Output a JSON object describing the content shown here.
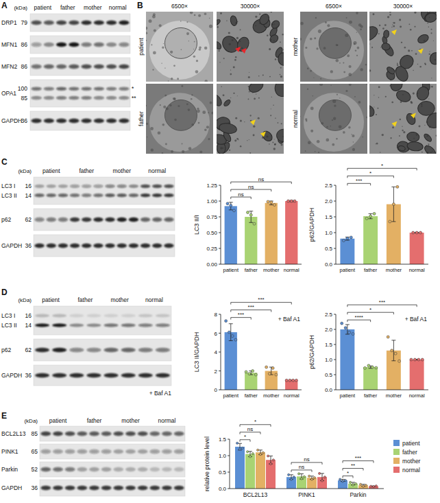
{
  "panel_labels": [
    "A",
    "B",
    "C",
    "D",
    "E"
  ],
  "blots": [
    {
      "unit": "(kDa)",
      "lanes": [
        "patient",
        "father",
        "mother",
        "normal"
      ],
      "lanes_per_group": 2,
      "rows": [
        {
          "band_labels": [
            {
              "name": "DRP1",
              "kda": 79
            }
          ],
          "bands": [
            [
              0.7,
              0.65,
              0.75,
              0.75,
              0.85,
              0.85,
              0.85,
              0.9
            ]
          ]
        },
        {
          "band_labels": [
            {
              "name": "MFN1",
              "kda": 86
            }
          ],
          "bands": [
            [
              0.35,
              0.4,
              0.95,
              0.95,
              0.5,
              0.55,
              0.4,
              0.45
            ]
          ]
        },
        {
          "band_labels": [
            {
              "name": "MFN2",
              "kda": 86
            }
          ],
          "bands": [
            [
              0.55,
              0.6,
              0.6,
              0.65,
              0.7,
              0.7,
              0.7,
              0.75
            ]
          ]
        },
        {
          "name": "OPA1",
          "band_labels": [
            {
              "kda": 100,
              "mark": "*"
            },
            {
              "kda": 85,
              "mark": "**"
            }
          ],
          "bands": [
            [
              0.55,
              0.5,
              0.6,
              0.55,
              0.55,
              0.55,
              0.5,
              0.5
            ],
            [
              0.45,
              0.45,
              0.5,
              0.5,
              0.5,
              0.45,
              0.45,
              0.45
            ]
          ]
        },
        {
          "band_labels": [
            {
              "name": "GAPDH",
              "kda": 36
            }
          ],
          "bands": [
            [
              0.85,
              0.85,
              0.85,
              0.85,
              0.85,
              0.85,
              0.85,
              0.85
            ]
          ]
        }
      ]
    },
    {
      "unit": "(kDa)",
      "lanes": [
        "patient",
        "father",
        "mother",
        "normal"
      ],
      "lanes_per_group": 3,
      "rows": [
        {
          "band_labels": [
            {
              "name": "LC3 I",
              "kda": 16
            },
            {
              "name": "LC3 II",
              "kda": 14
            }
          ],
          "bands": [
            [
              0.3,
              0.3,
              0.3,
              0.35,
              0.35,
              0.35,
              0.45,
              0.45,
              0.4,
              0.7,
              0.7,
              0.7
            ],
            [
              0.6,
              0.6,
              0.6,
              0.55,
              0.5,
              0.55,
              0.65,
              0.65,
              0.6,
              0.8,
              0.8,
              0.8
            ]
          ]
        },
        {
          "band_labels": [
            {
              "name": "p62",
              "kda": 62
            }
          ],
          "bands": [
            [
              0.45,
              0.5,
              0.5,
              0.8,
              0.8,
              0.85,
              0.85,
              0.9,
              0.9,
              0.6,
              0.6,
              0.6
            ]
          ]
        },
        {
          "band_labels": [
            {
              "name": "GAPDH",
              "kda": 36
            }
          ],
          "bands": [
            [
              0.85,
              0.85,
              0.85,
              0.85,
              0.85,
              0.85,
              0.85,
              0.85,
              0.85,
              0.85,
              0.85,
              0.85
            ]
          ]
        }
      ]
    },
    {
      "unit": "(kDa)",
      "lanes": [
        "patient",
        "father",
        "mother",
        "normal"
      ],
      "lanes_per_group": 2,
      "footer": "+ Baf A1",
      "rows": [
        {
          "band_labels": [
            {
              "name": "LC3 I",
              "kda": 16
            },
            {
              "name": "LC3 II",
              "kda": 14
            }
          ],
          "bands": [
            [
              0.2,
              0.2,
              0.1,
              0.1,
              0.1,
              0.1,
              0.15,
              0.15
            ],
            [
              0.95,
              0.95,
              0.4,
              0.4,
              0.55,
              0.55,
              0.5,
              0.5
            ]
          ]
        },
        {
          "band_labels": [
            {
              "name": "p62",
              "kda": 62
            }
          ],
          "bands": [
            [
              0.85,
              0.9,
              0.45,
              0.45,
              0.6,
              0.6,
              0.5,
              0.5
            ]
          ]
        },
        {
          "band_labels": [
            {
              "name": "GAPDH",
              "kda": 36
            }
          ],
          "bands": [
            [
              0.85,
              0.85,
              0.85,
              0.85,
              0.85,
              0.85,
              0.85,
              0.85
            ]
          ]
        }
      ]
    },
    {
      "unit": "(kDa)",
      "lanes": [
        "patient",
        "father",
        "mother",
        "normal"
      ],
      "lanes_per_group": 3,
      "rows": [
        {
          "band_labels": [
            {
              "name": "BCL2L13",
              "kda": 85
            }
          ],
          "bands": [
            [
              0.75,
              0.75,
              0.7,
              0.65,
              0.65,
              0.65,
              0.7,
              0.7,
              0.7,
              0.6,
              0.6,
              0.6
            ]
          ]
        },
        {
          "band_labels": [
            {
              "name": "PINK1",
              "kda": 65
            }
          ],
          "bands": [
            [
              0.35,
              0.35,
              0.35,
              0.35,
              0.35,
              0.35,
              0.3,
              0.3,
              0.3,
              0.35,
              0.35,
              0.35
            ]
          ]
        },
        {
          "band_labels": [
            {
              "name": "Parkin",
              "kda": 52
            }
          ],
          "bands": [
            [
              0.6,
              0.55,
              0.5,
              0.3,
              0.3,
              0.3,
              0.25,
              0.25,
              0.25,
              0.2,
              0.2,
              0.2
            ]
          ]
        },
        {
          "band_labels": [
            {
              "name": "GAPDH",
              "kda": 36
            }
          ],
          "bands": [
            [
              0.8,
              0.8,
              0.8,
              0.8,
              0.8,
              0.8,
              0.8,
              0.8,
              0.8,
              0.8,
              0.8,
              0.8
            ]
          ]
        }
      ]
    }
  ],
  "em": {
    "magnifications": [
      "6500×",
      "30000×"
    ],
    "samples": [
      {
        "label": "patient",
        "arrow_color": "#e8262b",
        "arrows": 2
      },
      {
        "label": "father",
        "arrow_color": "#f2d21b",
        "arrows": 2
      },
      {
        "label": "mother",
        "arrow_color": "#f2d21b",
        "arrows": 2
      },
      {
        "label": "normal",
        "arrow_color": "#f2d21b",
        "arrows": 2
      }
    ]
  },
  "chart_data": [
    {
      "type": "bar",
      "y_label": "LC3 II/I",
      "categories": [
        "patient",
        "father",
        "mother",
        "normal"
      ],
      "values": [
        0.92,
        0.75,
        0.97,
        1.0
      ],
      "errors": [
        0.06,
        0.09,
        0.03,
        0.01
      ],
      "points": [
        [
          0.96,
          0.93,
          0.85
        ],
        [
          0.82,
          0.78,
          0.64
        ],
        [
          0.99,
          0.98,
          0.94
        ],
        [
          1,
          1,
          1
        ]
      ],
      "colors": [
        "#5b8fd4",
        "#a9d373",
        "#e3b064",
        "#e46e6e"
      ],
      "ylim": [
        0,
        1.25
      ],
      "yticks": [
        {
          "value": 0,
          "label": "0.00"
        },
        0.25,
        {
          "value": 0.5,
          "label": "0.50"
        },
        0.75,
        {
          "value": 1,
          "label": "1.00"
        },
        1.25
      ],
      "significance": [
        {
          "from": 0,
          "to": 1,
          "label": "ns"
        },
        {
          "from": 0,
          "to": 2,
          "label": "ns"
        },
        {
          "from": 0,
          "to": 3,
          "label": "ns"
        }
      ]
    },
    {
      "type": "bar",
      "y_label": "p62/GAPDH",
      "categories": [
        "patient",
        "father",
        "mother",
        "normal"
      ],
      "values": [
        0.81,
        1.52,
        1.9,
        1.0
      ],
      "errors": [
        0.05,
        0.08,
        0.55,
        0.01
      ],
      "points": [
        [
          0.75,
          0.82,
          0.85
        ],
        [
          1.45,
          1.52,
          1.6
        ],
        [
          1.35,
          1.9,
          2.45
        ],
        [
          1,
          1,
          1
        ]
      ],
      "colors": [
        "#5b8fd4",
        "#a9d373",
        "#e3b064",
        "#e46e6e"
      ],
      "ylim": [
        0,
        2.5
      ],
      "yticks": [
        {
          "value": 0,
          "label": "0.0"
        },
        0.5,
        {
          "value": 1,
          "label": "1.0"
        },
        1.5,
        {
          "value": 2,
          "label": "2.0"
        },
        2.5
      ],
      "significance": [
        {
          "from": 0,
          "to": 1,
          "label": "***"
        },
        {
          "from": 0,
          "to": 2,
          "label": "*"
        },
        {
          "from": 0,
          "to": 3,
          "label": "*"
        }
      ]
    },
    {
      "type": "bar",
      "y_label": "LC3 II/GAPDH",
      "annotation": "+ Baf A1",
      "categories": [
        "patient",
        "father",
        "mother",
        "normal"
      ],
      "values": [
        6.1,
        1.8,
        2.0,
        1.0
      ],
      "errors": [
        0.9,
        0.2,
        0.4,
        0.02
      ],
      "points": [
        [
          7.3,
          6.1,
          5.7,
          5.3
        ],
        [
          1.9,
          1.7,
          2.0,
          1.6
        ],
        [
          2.4,
          1.7,
          2.3,
          1.6
        ],
        [
          1,
          1,
          1,
          1
        ]
      ],
      "colors": [
        "#5b8fd4",
        "#a9d373",
        "#e3b064",
        "#e46e6e"
      ],
      "ylim": [
        0,
        8
      ],
      "yticks": [
        0,
        2,
        4,
        6,
        8
      ],
      "significance": [
        {
          "from": 0,
          "to": 1,
          "label": "***"
        },
        {
          "from": 0,
          "to": 2,
          "label": "***"
        },
        {
          "from": 0,
          "to": 3,
          "label": "***"
        }
      ]
    },
    {
      "type": "bar",
      "y_label": "p62/GAPDH",
      "annotation": "+ Baf A1",
      "categories": [
        "patient",
        "father",
        "mother",
        "normal"
      ],
      "values": [
        2.0,
        0.75,
        1.3,
        1.0
      ],
      "errors": [
        0.16,
        0.04,
        0.34,
        0.01
      ],
      "points": [
        [
          2.2,
          2.05,
          1.9,
          1.85
        ],
        [
          0.72,
          0.8,
          0.75,
          0.73
        ],
        [
          1.75,
          1.3,
          1.2,
          0.95
        ],
        [
          1,
          1,
          1,
          1
        ]
      ],
      "colors": [
        "#5b8fd4",
        "#a9d373",
        "#e3b064",
        "#e46e6e"
      ],
      "ylim": [
        0,
        2.5
      ],
      "yticks": [
        {
          "value": 0,
          "label": "0.0"
        },
        0.5,
        {
          "value": 1,
          "label": "1.0"
        },
        1.5,
        {
          "value": 2,
          "label": "2.0"
        },
        2.5
      ],
      "significance": [
        {
          "from": 0,
          "to": 1,
          "label": "****"
        },
        {
          "from": 0,
          "to": 2,
          "label": "*"
        },
        {
          "from": 0,
          "to": 3,
          "label": "***"
        }
      ]
    },
    {
      "type": "bar",
      "y_label": "relative protein level",
      "legend": "right",
      "categories": [
        "BCL2L13",
        "PINK1",
        "Parkin"
      ],
      "series": [
        {
          "name": "patient",
          "color": "#5b8fd4",
          "values": [
            1.27,
            0.35,
            0.25
          ],
          "errors": [
            0.1,
            0.07,
            0.03
          ],
          "points": [
            [
              1.38,
              1.2,
              1.23
            ],
            [
              0.42,
              0.28,
              0.35
            ],
            [
              0.28,
              0.22,
              0.25
            ]
          ]
        },
        {
          "name": "father",
          "color": "#a9d373",
          "values": [
            1.05,
            0.37,
            0.15
          ],
          "errors": [
            0.08,
            0.08,
            0.04
          ],
          "points": [
            [
              1.12,
              0.97,
              1.06
            ],
            [
              0.45,
              0.3,
              0.36
            ],
            [
              0.19,
              0.11,
              0.15
            ]
          ]
        },
        {
          "name": "mother",
          "color": "#e3b064",
          "values": [
            1.1,
            0.33,
            0.1
          ],
          "errors": [
            0.07,
            0.05,
            0.03
          ],
          "points": [
            [
              1.17,
              1.04,
              1.09
            ],
            [
              0.38,
              0.28,
              0.33
            ],
            [
              0.13,
              0.07,
              0.1
            ]
          ]
        },
        {
          "name": "normal",
          "color": "#e46e6e",
          "values": [
            0.87,
            0.35,
            0.07
          ],
          "errors": [
            0.12,
            0.11,
            0.01
          ],
          "points": [
            [
              0.99,
              0.75,
              0.87
            ],
            [
              0.46,
              0.24,
              0.35
            ],
            [
              0.07,
              0.06,
              0.08
            ]
          ]
        }
      ],
      "ylim": [
        0,
        1.5
      ],
      "yticks": [
        {
          "value": 0,
          "label": "0.0"
        },
        0.5,
        {
          "value": 1,
          "label": "1.0"
        },
        1.5
      ],
      "significance": [
        {
          "category": 0,
          "from": 0,
          "to": 1,
          "label": "*"
        },
        {
          "category": 0,
          "from": 0,
          "to": 2,
          "label": "ns"
        },
        {
          "category": 0,
          "from": 0,
          "to": 3,
          "label": "*"
        },
        {
          "category": 1,
          "from": 0,
          "to": 2,
          "label": "ns"
        },
        {
          "category": 1,
          "from": 0,
          "to": 3,
          "label": "ns"
        },
        {
          "category": 2,
          "from": 0,
          "to": 1,
          "label": "*"
        },
        {
          "category": 2,
          "from": 0,
          "to": 2,
          "label": "**"
        },
        {
          "category": 2,
          "from": 0,
          "to": 3,
          "label": "***"
        }
      ]
    }
  ]
}
